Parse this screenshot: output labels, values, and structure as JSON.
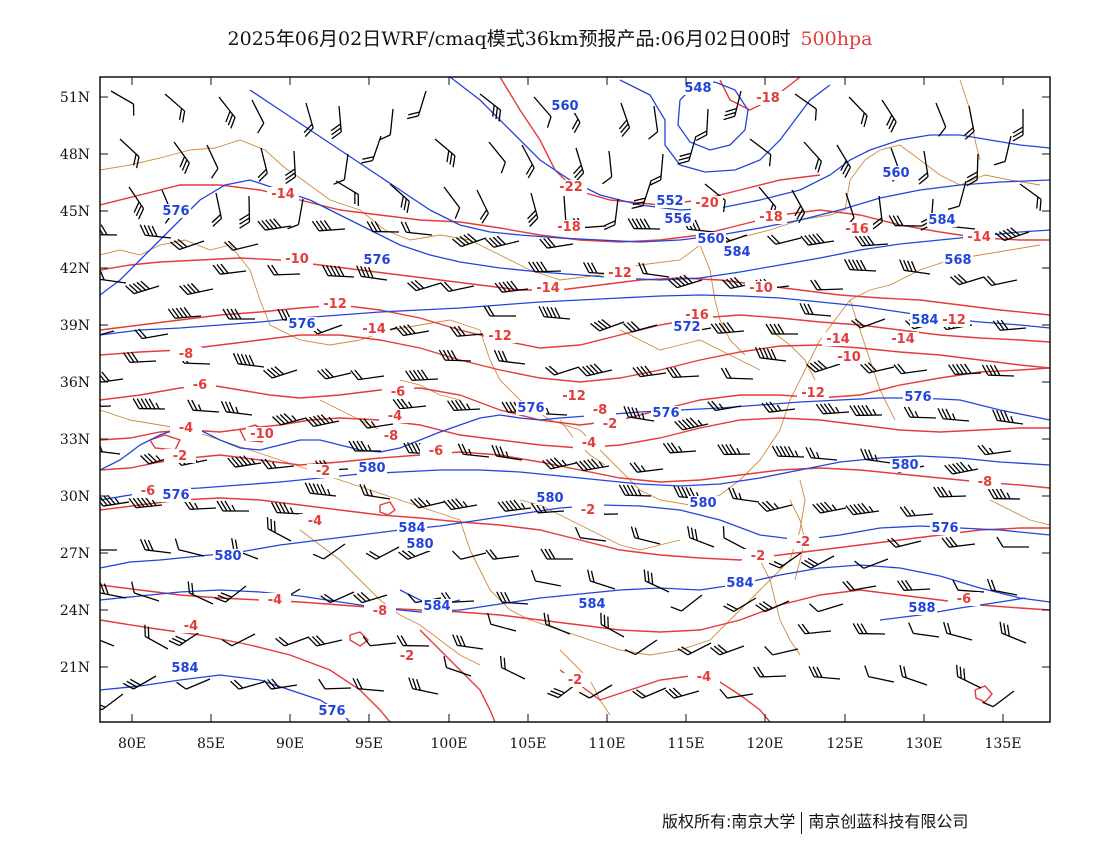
{
  "title": {
    "text": "2025年06月02日WRF/cmaq模式36km预报产品:06月02日00时",
    "level": "500hpa"
  },
  "colors": {
    "temperature": "#e53b3b",
    "height": "#2244dd",
    "boundary": "#d08a3a",
    "wind": "#000000"
  },
  "axes": {
    "lat_labels": [
      "51N",
      "48N",
      "45N",
      "42N",
      "39N",
      "36N",
      "33N",
      "30N",
      "27N",
      "24N",
      "21N"
    ],
    "lon_labels": [
      "80E",
      "85E",
      "90E",
      "95E",
      "100E",
      "105E",
      "110E",
      "115E",
      "120E",
      "125E",
      "130E",
      "135E"
    ]
  },
  "map_data": {
    "extent": {
      "lon": [
        78,
        138
      ],
      "lat": [
        18,
        52
      ]
    },
    "temperature_labels": [
      "-18",
      "-22",
      "-20",
      "-18",
      "-18",
      "-16",
      "-14",
      "-14",
      "-12",
      "-10",
      "-10",
      "-12",
      "-14",
      "-12",
      "-16",
      "-14",
      "-14",
      "-12",
      "-8",
      "-6",
      "-10",
      "-12",
      "-8",
      "-6",
      "-4",
      "-4",
      "-2",
      "-6",
      "-8",
      "-6",
      "-4",
      "-2",
      "-2",
      "-2",
      "-4",
      "-8",
      "-2",
      "-2",
      "-2",
      "-2",
      "-2",
      "-4",
      "-4",
      "-14",
      "-12",
      "-10",
      "-8",
      "-6",
      "-4"
    ],
    "height_labels": [
      "548",
      "552",
      "556",
      "560",
      "560",
      "576",
      "576",
      "576",
      "572",
      "576",
      "576",
      "576",
      "580",
      "580",
      "580",
      "580",
      "580",
      "584",
      "584",
      "584",
      "584",
      "584",
      "584",
      "588",
      "568",
      "560",
      "584",
      "576",
      "580",
      "584",
      "576",
      "576"
    ],
    "wind_barbs": "wind barbs at grid points (full barb 4 m/s, half 2 m/s)"
  },
  "footer": {
    "left": "版权所有:南京大学",
    "right": "南京创蓝科技有限公司"
  }
}
